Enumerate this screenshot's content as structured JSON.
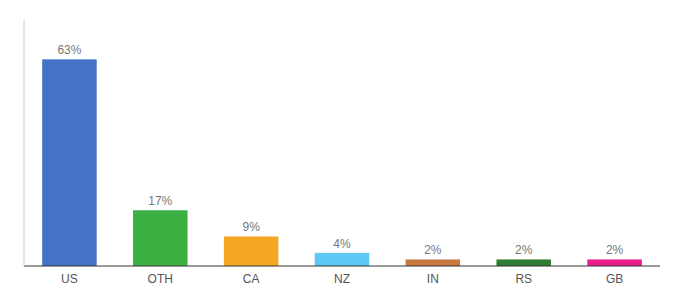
{
  "chart_data": {
    "type": "bar",
    "categories": [
      "US",
      "OTH",
      "CA",
      "NZ",
      "IN",
      "RS",
      "GB"
    ],
    "values": [
      63,
      17,
      9,
      4,
      2,
      2,
      2
    ],
    "value_labels": [
      "63%",
      "17%",
      "9%",
      "4%",
      "2%",
      "2%",
      "2%"
    ],
    "colors": [
      "#4472c4",
      "#3cb043",
      "#f5a623",
      "#5bc8f5",
      "#c87941",
      "#2e7d32",
      "#e91e8c"
    ],
    "ylim": [
      0,
      75
    ],
    "data_labels": true,
    "tick_labels": "x"
  }
}
